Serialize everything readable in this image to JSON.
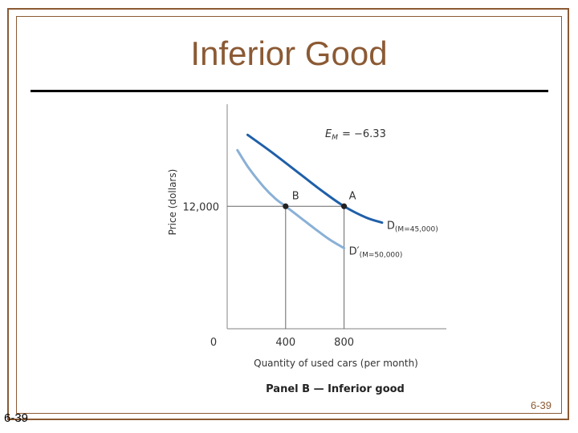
{
  "slide": {
    "title": "Inferior Good",
    "slide_number_right": "6-39",
    "slide_number_left": "6-39",
    "colors": {
      "frame": "#8b5a34",
      "title": "#8b5a34",
      "curve_dark": "#1f5fa8",
      "curve_light": "#8ab0d6"
    }
  },
  "chart_data": {
    "type": "line",
    "panel_caption": "Panel B — Inferior good",
    "xlabel": "Quantity of used cars (per month)",
    "ylabel": "Price (dollars)",
    "x_ticks": [
      {
        "value": 0,
        "label": "0"
      },
      {
        "value": 400,
        "label": "400"
      },
      {
        "value": 800,
        "label": "800"
      }
    ],
    "y_ticks": [
      {
        "value": 12000,
        "label": "12,000"
      }
    ],
    "xlim": [
      0,
      1500
    ],
    "ylim": [
      0,
      22000
    ],
    "elasticity_label": "E_M = −6.33",
    "elasticity": {
      "symbol": "E",
      "subscript": "M",
      "value": "= −6.33"
    },
    "series": [
      {
        "name": "D(M=45,000)",
        "label_main": "D",
        "label_sub": "(M=45,000)",
        "color": "#1f5fa8",
        "x": [
          140,
          300,
          500,
          650,
          800,
          950,
          1060
        ],
        "y": [
          19000,
          17350,
          15150,
          13500,
          12000,
          10900,
          10400
        ]
      },
      {
        "name": "D′(M=50,000)",
        "label_main": "D′",
        "label_sub": "(M=50,000)",
        "color": "#8ab0d6",
        "x": [
          70,
          150,
          250,
          330,
          400,
          500,
          600,
          700,
          800
        ],
        "y": [
          17500,
          15700,
          13900,
          12750,
          12000,
          10900,
          9800,
          8750,
          7900
        ]
      }
    ],
    "points": [
      {
        "label": "B",
        "x": 400,
        "y": 12000
      },
      {
        "label": "A",
        "x": 800,
        "y": 12000
      }
    ],
    "grid": false
  }
}
